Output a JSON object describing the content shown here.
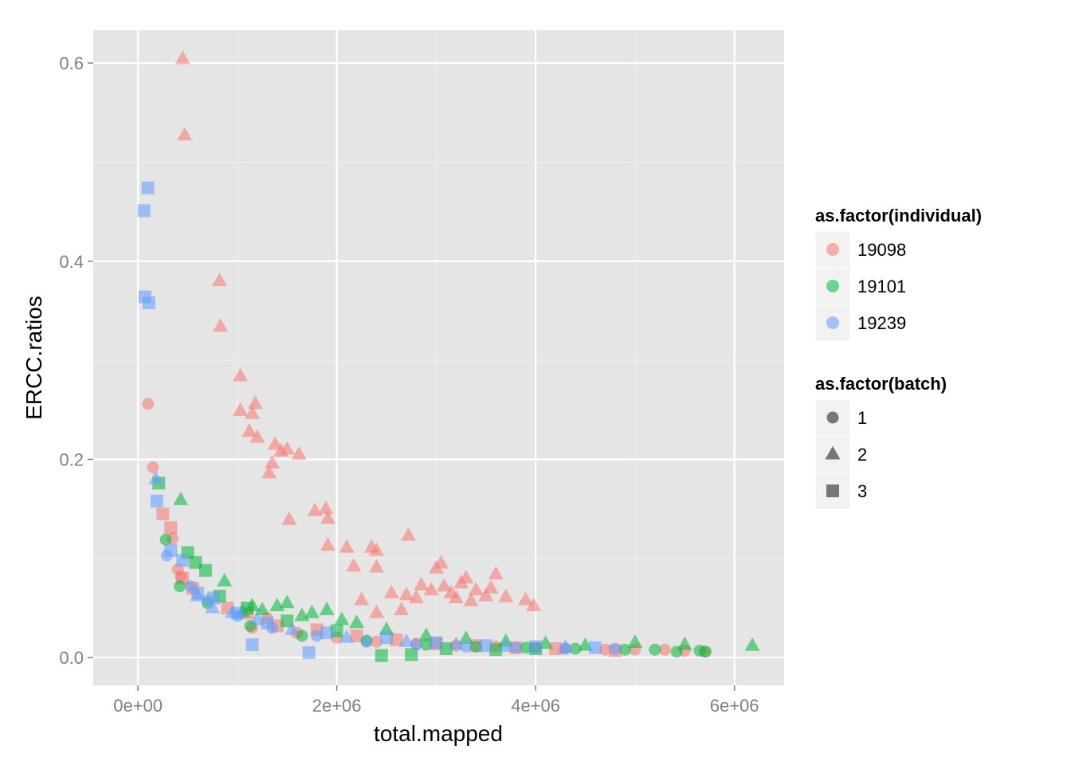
{
  "chart_data": {
    "type": "scatter",
    "xlabel": "total.mapped",
    "ylabel": "ERCC.ratios",
    "xlim": [
      -450000,
      6500000
    ],
    "ylim": [
      -0.028,
      0.633
    ],
    "x_ticks": [
      {
        "value": 0,
        "label": "0e+00"
      },
      {
        "value": 2000000,
        "label": "2e+06"
      },
      {
        "value": 4000000,
        "label": "4e+06"
      },
      {
        "value": 6000000,
        "label": "6e+06"
      }
    ],
    "y_ticks": [
      {
        "value": 0.0,
        "label": "0.0"
      },
      {
        "value": 0.2,
        "label": "0.2"
      },
      {
        "value": 0.4,
        "label": "0.4"
      },
      {
        "value": 0.6,
        "label": "0.6"
      }
    ],
    "grid": true,
    "legend_placement": "right",
    "colors": {
      "19098": "#F8766D",
      "19101": "#00BA38",
      "19239": "#619CFF"
    },
    "legend": {
      "individual": {
        "title": "as.factor(individual)",
        "entries": [
          "19098",
          "19101",
          "19239"
        ]
      },
      "batch": {
        "title": "as.factor(batch)",
        "entries": [
          "1",
          "2",
          "3"
        ]
      }
    },
    "series": [
      {
        "individual": "19098",
        "batch": "1",
        "points": [
          [
            100000,
            0.256
          ],
          [
            150000,
            0.192
          ],
          [
            350000,
            0.12
          ],
          [
            400000,
            0.089
          ],
          [
            430000,
            0.082
          ],
          [
            1150000,
            0.03
          ],
          [
            1300000,
            0.04
          ],
          [
            1600000,
            0.025
          ],
          [
            2000000,
            0.02
          ],
          [
            2400000,
            0.016
          ],
          [
            2800000,
            0.014
          ],
          [
            3200000,
            0.012
          ],
          [
            3600000,
            0.011
          ],
          [
            4000000,
            0.01
          ],
          [
            4300000,
            0.009
          ],
          [
            4700000,
            0.008
          ],
          [
            5000000,
            0.008
          ],
          [
            5300000,
            0.008
          ],
          [
            5500000,
            0.007
          ],
          [
            5700000,
            0.006
          ]
        ]
      },
      {
        "individual": "19098",
        "batch": "2",
        "points": [
          [
            450000,
            0.604
          ],
          [
            470000,
            0.527
          ],
          [
            820000,
            0.38
          ],
          [
            830000,
            0.334
          ],
          [
            1030000,
            0.284
          ],
          [
            1030000,
            0.249
          ],
          [
            1180000,
            0.256
          ],
          [
            1150000,
            0.246
          ],
          [
            1120000,
            0.228
          ],
          [
            1200000,
            0.222
          ],
          [
            1380000,
            0.215
          ],
          [
            1440000,
            0.208
          ],
          [
            1500000,
            0.21
          ],
          [
            1620000,
            0.205
          ],
          [
            1350000,
            0.196
          ],
          [
            1320000,
            0.186
          ],
          [
            1520000,
            0.139
          ],
          [
            1780000,
            0.148
          ],
          [
            1890000,
            0.15
          ],
          [
            1910000,
            0.14
          ],
          [
            1910000,
            0.113
          ],
          [
            2100000,
            0.111
          ],
          [
            2350000,
            0.111
          ],
          [
            2400000,
            0.108
          ],
          [
            2170000,
            0.092
          ],
          [
            2400000,
            0.091
          ],
          [
            2720000,
            0.123
          ],
          [
            2800000,
            0.06
          ],
          [
            2850000,
            0.073
          ],
          [
            2950000,
            0.068
          ],
          [
            3000000,
            0.09
          ],
          [
            3050000,
            0.095
          ],
          [
            3080000,
            0.072
          ],
          [
            3150000,
            0.065
          ],
          [
            3200000,
            0.06
          ],
          [
            3250000,
            0.075
          ],
          [
            3300000,
            0.08
          ],
          [
            3350000,
            0.057
          ],
          [
            3400000,
            0.068
          ],
          [
            3500000,
            0.062
          ],
          [
            3550000,
            0.07
          ],
          [
            3600000,
            0.084
          ],
          [
            3700000,
            0.061
          ],
          [
            3900000,
            0.058
          ],
          [
            3980000,
            0.052
          ],
          [
            2550000,
            0.065
          ],
          [
            2700000,
            0.063
          ],
          [
            2650000,
            0.048
          ],
          [
            2400000,
            0.045
          ],
          [
            2250000,
            0.058
          ]
        ]
      },
      {
        "individual": "19098",
        "batch": "3",
        "points": [
          [
            250000,
            0.145
          ],
          [
            330000,
            0.131
          ],
          [
            450000,
            0.08
          ],
          [
            550000,
            0.07
          ],
          [
            900000,
            0.05
          ],
          [
            1100000,
            0.045
          ],
          [
            1400000,
            0.032
          ],
          [
            1800000,
            0.028
          ],
          [
            2200000,
            0.022
          ],
          [
            2600000,
            0.018
          ],
          [
            3000000,
            0.014
          ],
          [
            3400000,
            0.012
          ],
          [
            3800000,
            0.01
          ],
          [
            4200000,
            0.009
          ],
          [
            4800000,
            0.007
          ]
        ]
      },
      {
        "individual": "19101",
        "batch": "1",
        "points": [
          [
            280000,
            0.119
          ],
          [
            420000,
            0.072
          ],
          [
            700000,
            0.055
          ],
          [
            1130000,
            0.032
          ],
          [
            1650000,
            0.022
          ],
          [
            2300000,
            0.017
          ],
          [
            2900000,
            0.013
          ],
          [
            3400000,
            0.011
          ],
          [
            3900000,
            0.01
          ],
          [
            4400000,
            0.009
          ],
          [
            4900000,
            0.008
          ],
          [
            5200000,
            0.008
          ],
          [
            5420000,
            0.006
          ],
          [
            5710000,
            0.006
          ],
          [
            5650000,
            0.007
          ]
        ]
      },
      {
        "individual": "19101",
        "batch": "2",
        "points": [
          [
            430000,
            0.159
          ],
          [
            870000,
            0.077
          ],
          [
            1050000,
            0.046
          ],
          [
            1150000,
            0.052
          ],
          [
            1250000,
            0.048
          ],
          [
            1400000,
            0.052
          ],
          [
            1500000,
            0.055
          ],
          [
            1650000,
            0.042
          ],
          [
            1750000,
            0.045
          ],
          [
            1900000,
            0.048
          ],
          [
            2050000,
            0.038
          ],
          [
            2200000,
            0.035
          ],
          [
            2500000,
            0.028
          ],
          [
            2900000,
            0.022
          ],
          [
            3300000,
            0.019
          ],
          [
            3700000,
            0.016
          ],
          [
            4100000,
            0.014
          ],
          [
            4500000,
            0.012
          ],
          [
            5000000,
            0.015
          ],
          [
            5500000,
            0.013
          ],
          [
            6180000,
            0.012
          ]
        ]
      },
      {
        "individual": "19101",
        "batch": "3",
        "points": [
          [
            210000,
            0.176
          ],
          [
            500000,
            0.106
          ],
          [
            580000,
            0.096
          ],
          [
            680000,
            0.088
          ],
          [
            820000,
            0.062
          ],
          [
            1100000,
            0.05
          ],
          [
            1500000,
            0.037
          ],
          [
            2000000,
            0.027
          ],
          [
            2450000,
            0.002
          ],
          [
            2750000,
            0.003
          ],
          [
            3100000,
            0.009
          ],
          [
            3600000,
            0.008
          ],
          [
            4000000,
            0.009
          ]
        ]
      },
      {
        "individual": "19239",
        "batch": "1",
        "points": [
          [
            290000,
            0.103
          ],
          [
            530000,
            0.072
          ],
          [
            700000,
            0.058
          ],
          [
            1000000,
            0.042
          ],
          [
            1350000,
            0.03
          ],
          [
            1800000,
            0.022
          ],
          [
            2300000,
            0.016
          ],
          [
            2800000,
            0.013
          ],
          [
            3300000,
            0.011
          ],
          [
            3800000,
            0.01
          ],
          [
            4300000,
            0.009
          ],
          [
            4800000,
            0.009
          ]
        ]
      },
      {
        "individual": "19239",
        "batch": "2",
        "points": [
          [
            180000,
            0.18
          ],
          [
            600000,
            0.062
          ],
          [
            750000,
            0.05
          ],
          [
            950000,
            0.045
          ],
          [
            1200000,
            0.038
          ],
          [
            1550000,
            0.028
          ],
          [
            2100000,
            0.02
          ],
          [
            2700000,
            0.016
          ],
          [
            3200000,
            0.013
          ],
          [
            3700000,
            0.011
          ],
          [
            4300000,
            0.01
          ]
        ]
      },
      {
        "individual": "19239",
        "batch": "3",
        "points": [
          [
            60000,
            0.451
          ],
          [
            100000,
            0.474
          ],
          [
            70000,
            0.364
          ],
          [
            110000,
            0.358
          ],
          [
            190000,
            0.158
          ],
          [
            330000,
            0.108
          ],
          [
            450000,
            0.098
          ],
          [
            600000,
            0.065
          ],
          [
            760000,
            0.06
          ],
          [
            1000000,
            0.045
          ],
          [
            1150000,
            0.013
          ],
          [
            1300000,
            0.035
          ],
          [
            1720000,
            0.005
          ],
          [
            1900000,
            0.025
          ],
          [
            2500000,
            0.02
          ],
          [
            3000000,
            0.015
          ],
          [
            3500000,
            0.012
          ],
          [
            4000000,
            0.011
          ],
          [
            4600000,
            0.01
          ]
        ]
      }
    ]
  }
}
